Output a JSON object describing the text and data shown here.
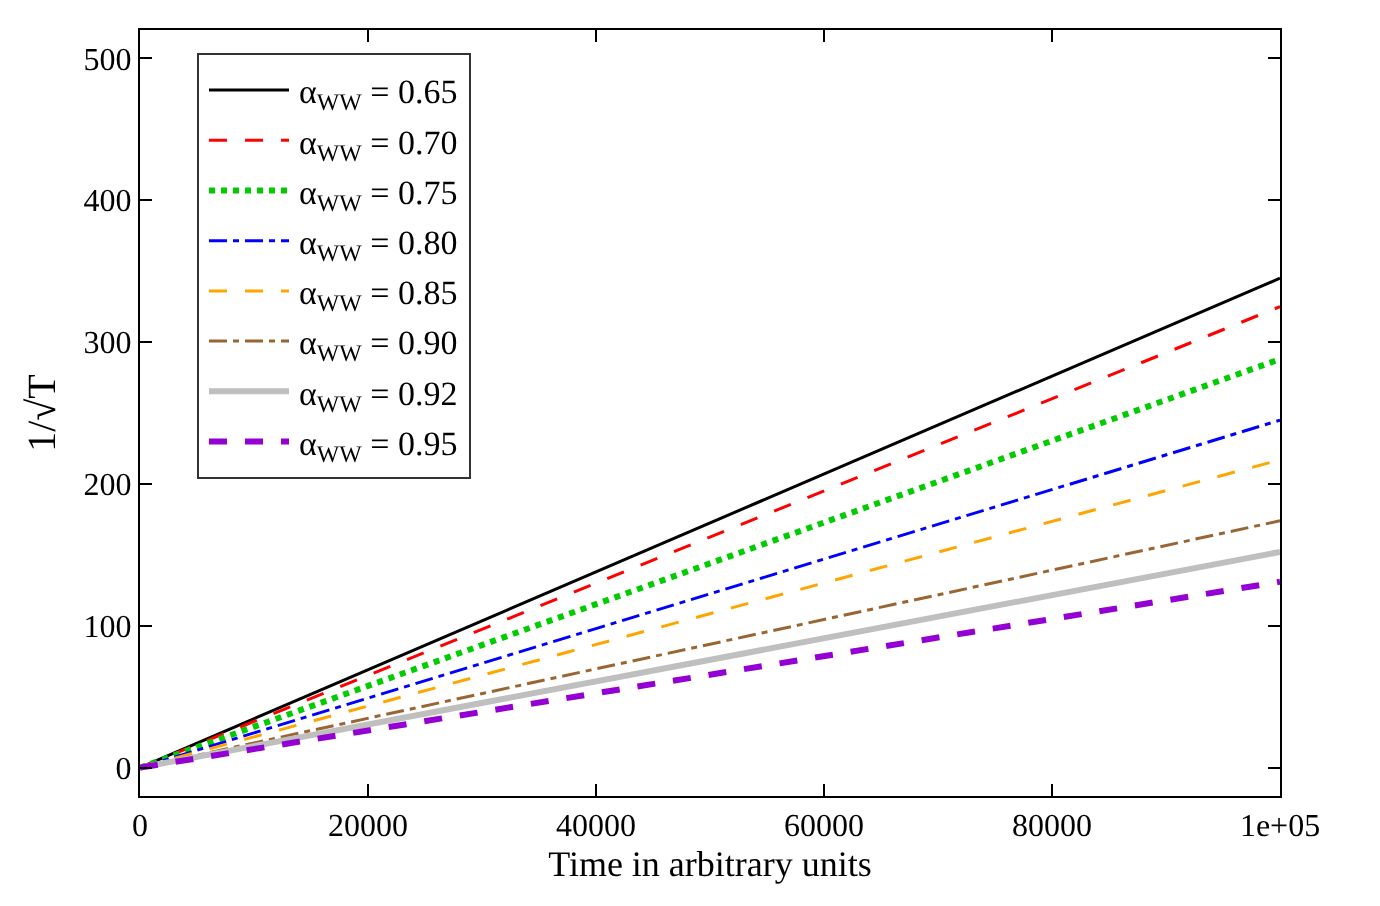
{
  "chart_data": {
    "type": "line",
    "xlabel": "Time in arbitrary units",
    "ylabel": "1/√T",
    "x": [
      0,
      100000
    ],
    "xlim": [
      0,
      100000
    ],
    "xticks": [
      0,
      20000,
      40000,
      60000,
      80000,
      {
        "value": 100000,
        "label": "1e+05"
      }
    ],
    "ylim": [
      -20,
      520
    ],
    "yticks": [
      0,
      100,
      200,
      300,
      400,
      500
    ],
    "legend": "top left",
    "marker": "none",
    "series": [
      {
        "name": "α$_{WW}$ = 0.65",
        "color": "#000000",
        "line_style": "solid",
        "values": [
          0,
          345
        ]
      },
      {
        "name": "α$_{WW}$ = 0.70",
        "color": "#ff0000",
        "line_style": "dashed",
        "values": [
          0,
          325
        ]
      },
      {
        "name": "α$_{WW}$ = 0.75",
        "color": "#00cc00",
        "line_style": "dotted",
        "values": [
          0,
          288
        ]
      },
      {
        "name": "α$_{WW}$ = 0.80",
        "color": "#0000ff",
        "line_style": "dashdot",
        "values": [
          0,
          245
        ]
      },
      {
        "name": "α$_{WW}$ = 0.85",
        "color": "#ffa500",
        "line_style": "dashed",
        "values": [
          0,
          217
        ]
      },
      {
        "name": "α$_{WW}$ = 0.90",
        "color": "#996633",
        "line_style": "dashdot",
        "values": [
          0,
          174
        ]
      },
      {
        "name": "α$_{WW}$ = 0.92",
        "color": "#bfbfbf",
        "line_style": "solid",
        "values": [
          0,
          152
        ]
      },
      {
        "name": "α$_{WW}$ = 0.95",
        "color": "#9400d3",
        "line_style": "dashed",
        "values": [
          0,
          131
        ]
      }
    ]
  }
}
